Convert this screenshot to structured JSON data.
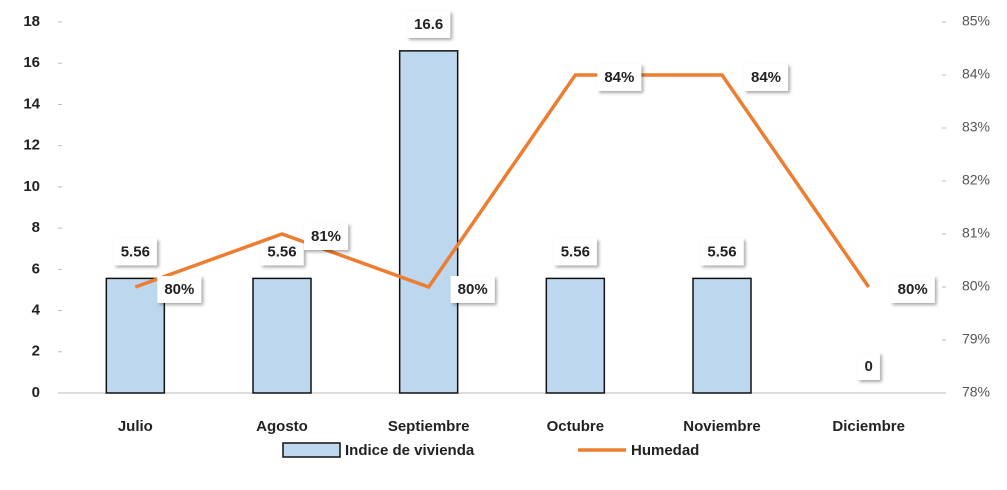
{
  "chart_data": {
    "type": "combo",
    "categories": [
      "Julio",
      "Agosto",
      "Septiembre",
      "Octubre",
      "Noviembre",
      "Diciembre"
    ],
    "series": [
      {
        "name": "Indice de vivienda",
        "type": "bar",
        "color": "#bdd7ee",
        "values": [
          5.56,
          5.56,
          16.6,
          5.56,
          5.56,
          0
        ]
      },
      {
        "name": "Humedad",
        "type": "line",
        "axis": "y2",
        "color": "#ed7d31",
        "values": [
          80,
          81,
          80,
          84,
          84,
          80
        ],
        "value_labels": [
          "80%",
          "81%",
          "80%",
          "84%",
          "84%",
          "80%"
        ]
      }
    ],
    "ylim": [
      0,
      18
    ],
    "yticks": [
      0,
      2,
      4,
      6,
      8,
      10,
      12,
      14,
      16,
      18
    ],
    "y2lim": [
      78,
      85
    ],
    "y2ticks": [
      {
        "value": 78,
        "label": "78%"
      },
      {
        "value": 79,
        "label": "79%"
      },
      {
        "value": 80,
        "label": "80%"
      },
      {
        "value": 81,
        "label": "81%"
      },
      {
        "value": 82,
        "label": "82%"
      },
      {
        "value": 83,
        "label": "83%"
      },
      {
        "value": 84,
        "label": "84%"
      },
      {
        "value": 85,
        "label": "85%"
      }
    ],
    "legend": "bottom",
    "grid": false
  }
}
